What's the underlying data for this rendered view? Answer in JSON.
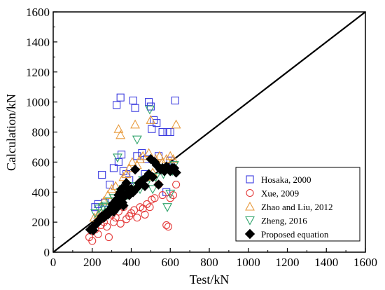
{
  "chart_data": {
    "type": "scatter",
    "xlabel": "Test/kN",
    "ylabel": "Calculation/kN",
    "xlim": [
      0,
      1600
    ],
    "ylim": [
      0,
      1600
    ],
    "x_ticks": [
      "0",
      "200",
      "400",
      "600",
      "800",
      "1000",
      "1200",
      "1400",
      "1600"
    ],
    "y_ticks": [
      "0",
      "200",
      "400",
      "600",
      "800",
      "1000",
      "1200",
      "1400",
      "1600"
    ],
    "grid": false,
    "legend_position": "bottom-right",
    "reference_line": {
      "from": [
        0,
        0
      ],
      "to": [
        1600,
        1600
      ],
      "color": "#000000"
    },
    "series": [
      {
        "name": "Hosaka, 2000",
        "marker": "square",
        "color": "#3a3adf",
        "points": [
          [
            215,
            300
          ],
          [
            230,
            320
          ],
          [
            250,
            515
          ],
          [
            265,
            330
          ],
          [
            290,
            450
          ],
          [
            310,
            560
          ],
          [
            325,
            980
          ],
          [
            335,
            600
          ],
          [
            345,
            1030
          ],
          [
            350,
            650
          ],
          [
            360,
            540
          ],
          [
            375,
            520
          ],
          [
            390,
            480
          ],
          [
            410,
            1010
          ],
          [
            420,
            960
          ],
          [
            430,
            640
          ],
          [
            455,
            660
          ],
          [
            470,
            520
          ],
          [
            480,
            620
          ],
          [
            490,
            1000
          ],
          [
            500,
            970
          ],
          [
            505,
            820
          ],
          [
            515,
            880
          ],
          [
            530,
            860
          ],
          [
            540,
            640
          ],
          [
            560,
            800
          ],
          [
            580,
            400
          ],
          [
            585,
            800
          ],
          [
            600,
            800
          ],
          [
            625,
            1010
          ],
          [
            600,
            610
          ]
        ]
      },
      {
        "name": "Xue, 2009",
        "marker": "circle",
        "color": "#e43a3a",
        "points": [
          [
            185,
            100
          ],
          [
            200,
            75
          ],
          [
            215,
            150
          ],
          [
            230,
            120
          ],
          [
            245,
            180
          ],
          [
            260,
            200
          ],
          [
            275,
            170
          ],
          [
            285,
            100
          ],
          [
            300,
            250
          ],
          [
            310,
            200
          ],
          [
            320,
            230
          ],
          [
            335,
            270
          ],
          [
            345,
            190
          ],
          [
            360,
            300
          ],
          [
            375,
            220
          ],
          [
            390,
            240
          ],
          [
            400,
            260
          ],
          [
            415,
            280
          ],
          [
            430,
            230
          ],
          [
            445,
            300
          ],
          [
            460,
            290
          ],
          [
            470,
            250
          ],
          [
            480,
            320
          ],
          [
            495,
            300
          ],
          [
            505,
            350
          ],
          [
            520,
            360
          ],
          [
            540,
            450
          ],
          [
            560,
            380
          ],
          [
            580,
            180
          ],
          [
            590,
            170
          ],
          [
            600,
            360
          ],
          [
            615,
            380
          ],
          [
            630,
            450
          ]
        ]
      },
      {
        "name": "Zhao and Liu, 2012",
        "marker": "triangle",
        "color": "#e89a3c",
        "points": [
          [
            210,
            230
          ],
          [
            230,
            250
          ],
          [
            245,
            260
          ],
          [
            260,
            340
          ],
          [
            280,
            380
          ],
          [
            300,
            420
          ],
          [
            320,
            440
          ],
          [
            335,
            820
          ],
          [
            345,
            780
          ],
          [
            360,
            500
          ],
          [
            375,
            520
          ],
          [
            390,
            560
          ],
          [
            405,
            600
          ],
          [
            420,
            850
          ],
          [
            430,
            580
          ],
          [
            445,
            620
          ],
          [
            460,
            640
          ],
          [
            475,
            500
          ],
          [
            490,
            660
          ],
          [
            500,
            880
          ],
          [
            510,
            530
          ],
          [
            525,
            620
          ],
          [
            545,
            640
          ],
          [
            560,
            600
          ],
          [
            580,
            620
          ],
          [
            600,
            640
          ],
          [
            615,
            620
          ],
          [
            630,
            850
          ]
        ]
      },
      {
        "name": "Zheng, 2016",
        "marker": "triangle-down",
        "color": "#2fa36b",
        "points": [
          [
            215,
            260
          ],
          [
            235,
            290
          ],
          [
            255,
            300
          ],
          [
            270,
            310
          ],
          [
            290,
            340
          ],
          [
            310,
            360
          ],
          [
            330,
            630
          ],
          [
            345,
            400
          ],
          [
            360,
            420
          ],
          [
            380,
            380
          ],
          [
            395,
            440
          ],
          [
            410,
            400
          ],
          [
            430,
            750
          ],
          [
            445,
            420
          ],
          [
            460,
            480
          ],
          [
            475,
            450
          ],
          [
            495,
            950
          ],
          [
            510,
            420
          ],
          [
            525,
            500
          ],
          [
            545,
            560
          ],
          [
            565,
            520
          ],
          [
            585,
            300
          ],
          [
            600,
            390
          ],
          [
            610,
            540
          ],
          [
            620,
            580
          ]
        ]
      },
      {
        "name": "Proposed equation",
        "marker": "diamond",
        "color": "#000000",
        "points": [
          [
            190,
            150
          ],
          [
            205,
            145
          ],
          [
            215,
            180
          ],
          [
            230,
            200
          ],
          [
            240,
            220
          ],
          [
            250,
            240
          ],
          [
            260,
            230
          ],
          [
            270,
            260
          ],
          [
            280,
            250
          ],
          [
            290,
            280
          ],
          [
            300,
            300
          ],
          [
            305,
            320
          ],
          [
            310,
            270
          ],
          [
            320,
            340
          ],
          [
            325,
            350
          ],
          [
            330,
            300
          ],
          [
            335,
            380
          ],
          [
            340,
            360
          ],
          [
            345,
            400
          ],
          [
            350,
            420
          ],
          [
            355,
            330
          ],
          [
            360,
            310
          ],
          [
            365,
            370
          ],
          [
            370,
            440
          ],
          [
            375,
            460
          ],
          [
            380,
            390
          ],
          [
            390,
            380
          ],
          [
            400,
            420
          ],
          [
            410,
            400
          ],
          [
            420,
            550
          ],
          [
            430,
            430
          ],
          [
            440,
            460
          ],
          [
            450,
            470
          ],
          [
            460,
            480
          ],
          [
            470,
            440
          ],
          [
            480,
            500
          ],
          [
            490,
            520
          ],
          [
            500,
            620
          ],
          [
            510,
            500
          ],
          [
            520,
            600
          ],
          [
            530,
            580
          ],
          [
            540,
            450
          ],
          [
            550,
            550
          ],
          [
            560,
            560
          ],
          [
            570,
            540
          ],
          [
            580,
            570
          ],
          [
            590,
            560
          ],
          [
            600,
            540
          ],
          [
            610,
            560
          ],
          [
            620,
            560
          ],
          [
            630,
            530
          ]
        ]
      }
    ]
  }
}
